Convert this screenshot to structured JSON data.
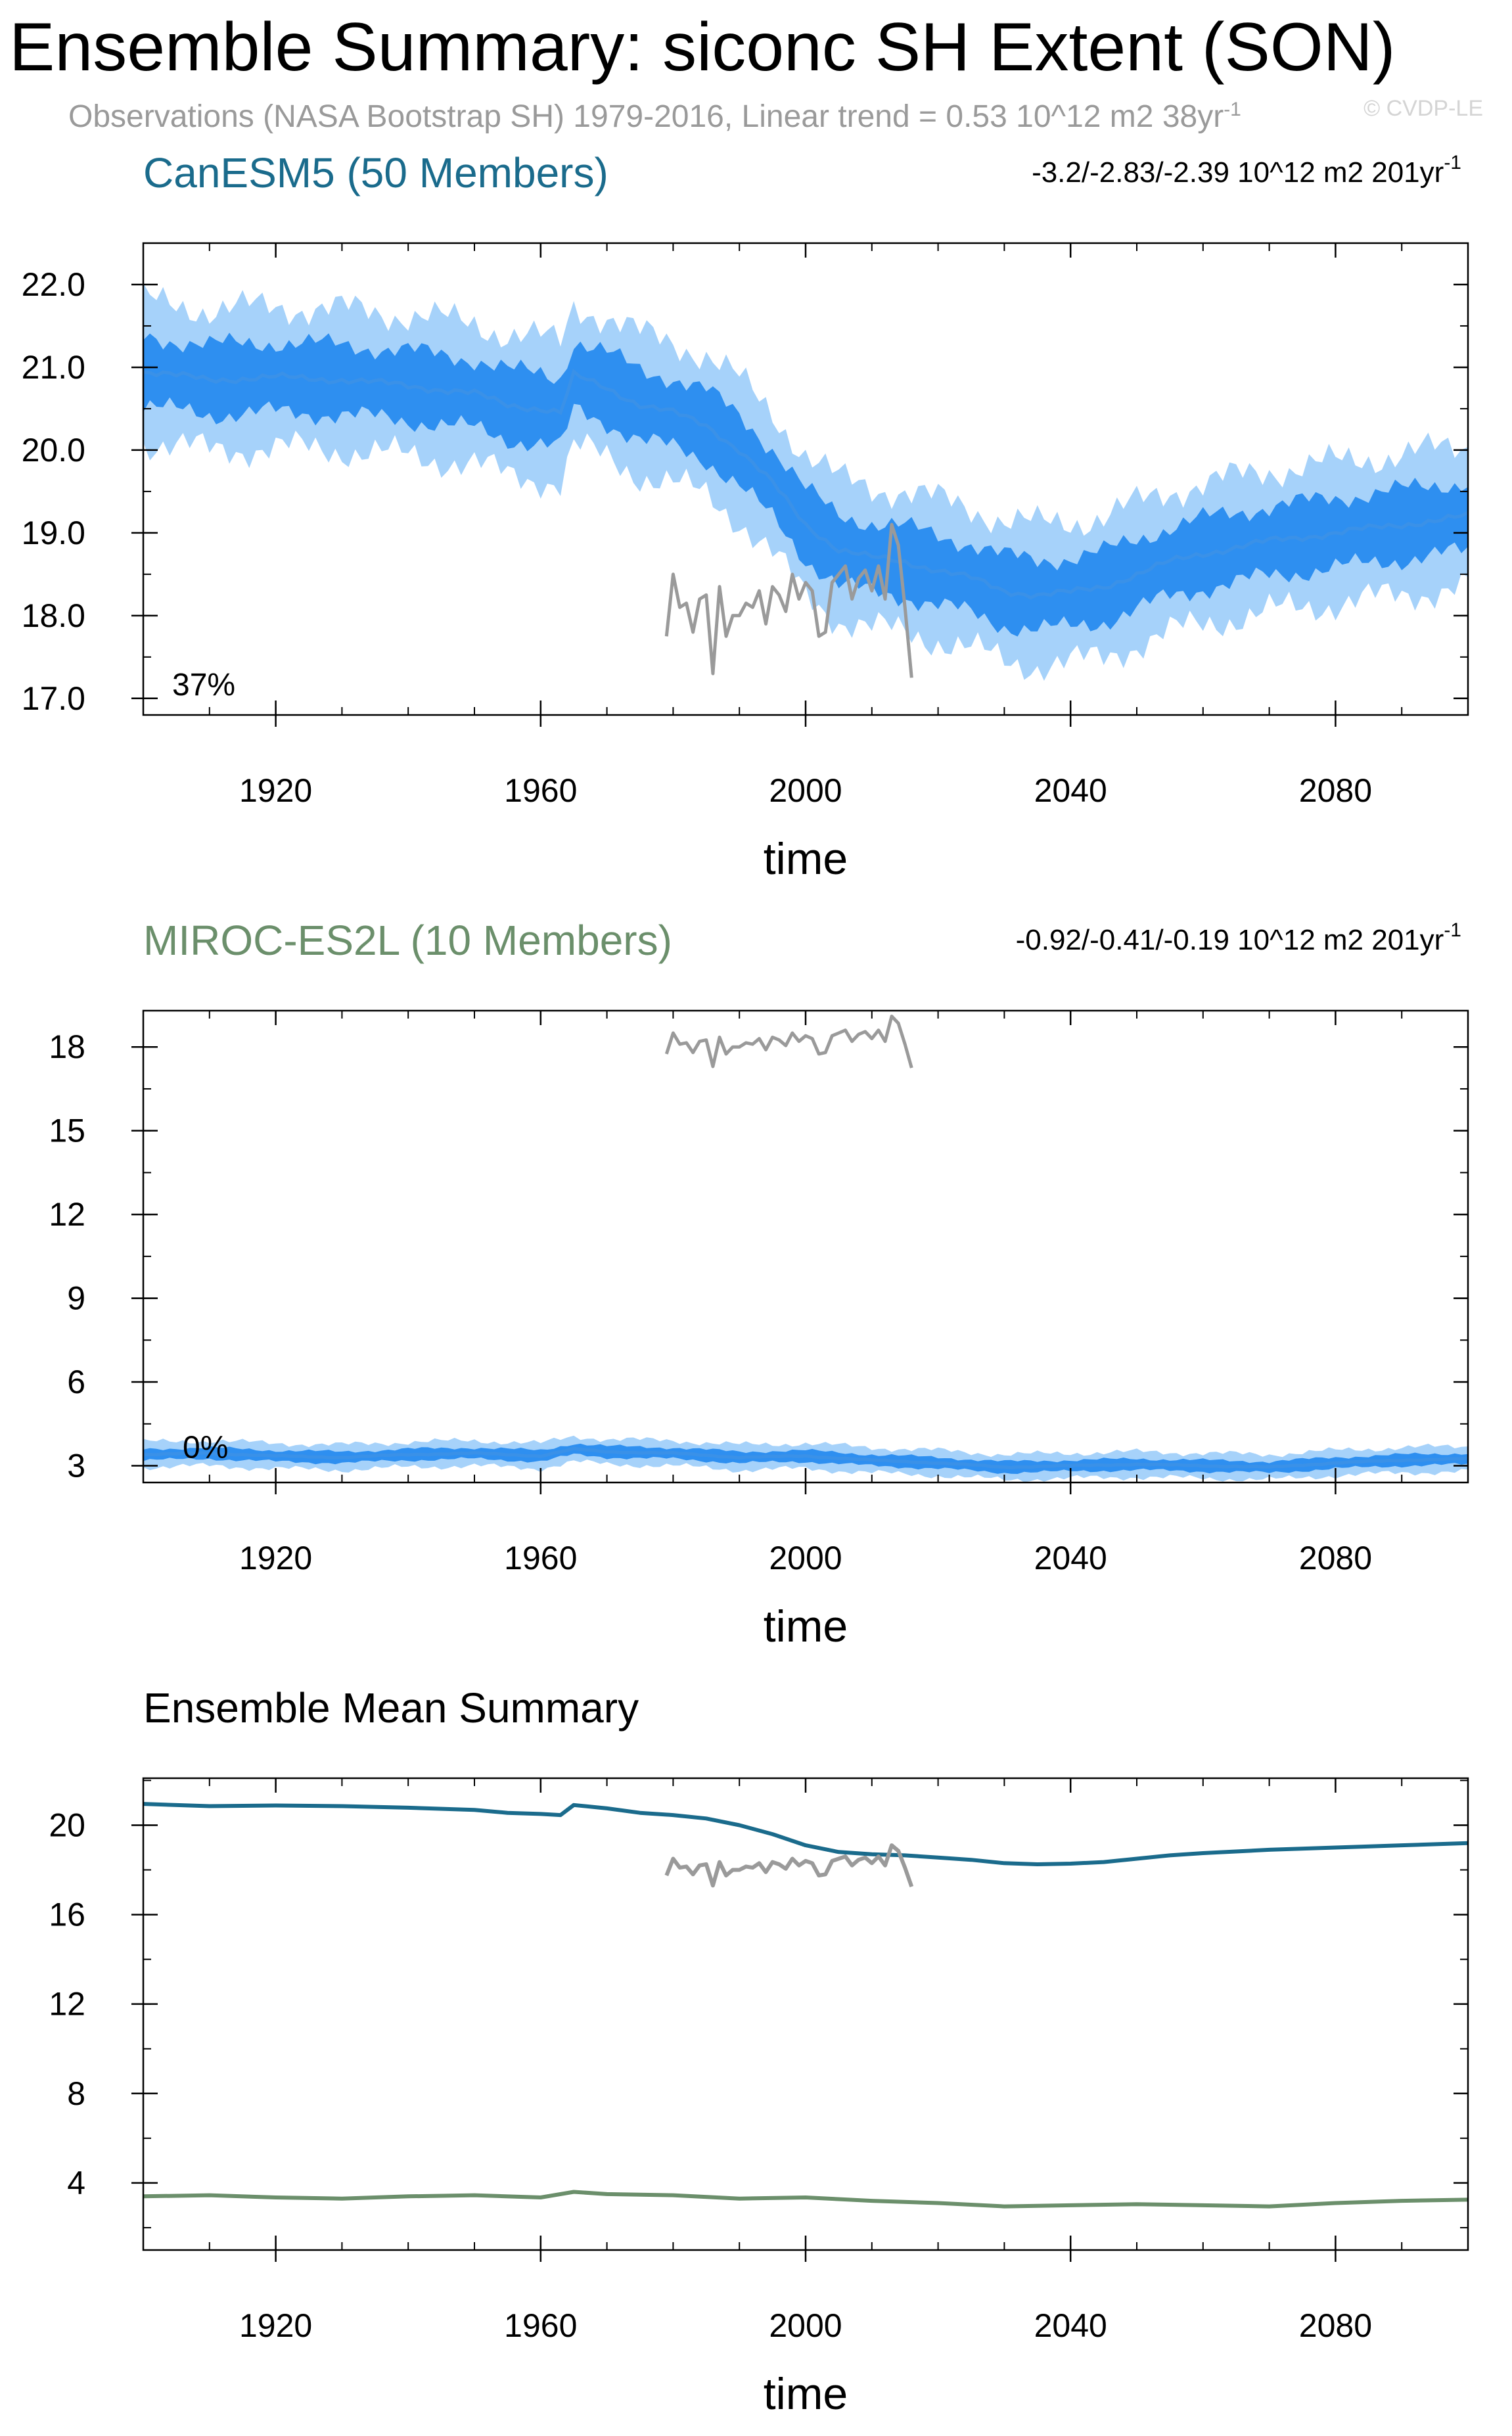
{
  "title": "Ensemble Summary: siconc SH Extent (SON)",
  "subtitle": "Observations (NASA Bootstrap SH) 1979-2016, Linear trend = 0.53 10^12 m2 38yr",
  "subtitle_sup": "-1",
  "watermark": "© CVDP-LE",
  "colors": {
    "canesm5": "#1a6b8c",
    "miroc": "#6b8f6b",
    "obs": "#9a9a9a",
    "ens_mean": "#3a91e8",
    "inner_band": "#2e8ff0",
    "outer_band": "#a6d2fa"
  },
  "chart_data": [
    {
      "type": "area",
      "title": "CanESM5 (50 Members)",
      "trend_text": "-3.2/-2.83/-2.39 10^12 m2 201yr",
      "trend_sup": "-1",
      "annotation": "37%",
      "xlabel": "time",
      "ylabel": "",
      "xlim": [
        1900,
        2100
      ],
      "ylim": [
        16.8,
        22.5
      ],
      "xticks": [
        1920,
        1960,
        2000,
        2040,
        2080
      ],
      "yticks": [
        17.0,
        18.0,
        19.0,
        20.0,
        21.0,
        22.0
      ],
      "ytick_labels": [
        "17.0",
        "18.0",
        "19.0",
        "20.0",
        "21.0",
        "22.0"
      ],
      "ensemble_mean": {
        "x": [
          1900,
          1910,
          1920,
          1930,
          1940,
          1950,
          1955,
          1960,
          1963,
          1965,
          1970,
          1975,
          1980,
          1985,
          1990,
          1995,
          2000,
          2005,
          2010,
          2015,
          2020,
          2025,
          2030,
          2035,
          2040,
          2045,
          2050,
          2055,
          2060,
          2070,
          2080,
          2090,
          2100
        ],
        "y": [
          20.95,
          20.85,
          20.88,
          20.85,
          20.78,
          20.68,
          20.55,
          20.5,
          20.45,
          20.9,
          20.75,
          20.55,
          20.45,
          20.3,
          20.0,
          19.6,
          19.1,
          18.8,
          18.7,
          18.65,
          18.55,
          18.45,
          18.3,
          18.25,
          18.28,
          18.35,
          18.5,
          18.65,
          18.75,
          18.9,
          19.0,
          19.1,
          19.2
        ]
      },
      "inner_halfwidth": 0.42,
      "outer_halfwidth": 0.85,
      "observations": {
        "x": [
          1979,
          1980,
          1981,
          1982,
          1983,
          1984,
          1985,
          1986,
          1987,
          1988,
          1989,
          1990,
          1991,
          1992,
          1993,
          1994,
          1995,
          1996,
          1997,
          1998,
          1999,
          2000,
          2001,
          2002,
          2003,
          2004,
          2005,
          2006,
          2007,
          2008,
          2009,
          2010,
          2011,
          2012,
          2013,
          2014,
          2015,
          2016
        ],
        "y": [
          17.75,
          18.5,
          18.1,
          18.15,
          17.8,
          18.2,
          18.25,
          17.3,
          18.35,
          17.75,
          18.0,
          18.0,
          18.15,
          18.1,
          18.3,
          17.9,
          18.35,
          18.25,
          18.05,
          18.5,
          18.2,
          18.4,
          18.3,
          17.75,
          17.8,
          18.4,
          18.5,
          18.6,
          18.2,
          18.45,
          18.55,
          18.3,
          18.6,
          18.2,
          19.1,
          18.85,
          18.1,
          17.25
        ]
      }
    },
    {
      "type": "area",
      "title": "MIROC-ES2L (10 Members)",
      "trend_text": "-0.92/-0.41/-0.19 10^12 m2 201yr",
      "trend_sup": "-1",
      "annotation": "0%",
      "xlabel": "time",
      "ylabel": "",
      "xlim": [
        1900,
        2100
      ],
      "ylim": [
        2.4,
        19.3
      ],
      "xticks": [
        1920,
        1960,
        2000,
        2040,
        2080
      ],
      "yticks": [
        3,
        6,
        9,
        12,
        15,
        18
      ],
      "ytick_labels": [
        "3",
        "6",
        "9",
        "12",
        "15",
        "18"
      ],
      "ensemble_mean": {
        "x": [
          1900,
          1910,
          1920,
          1930,
          1940,
          1950,
          1960,
          1965,
          1970,
          1980,
          1990,
          2000,
          2010,
          2020,
          2030,
          2040,
          2050,
          2060,
          2070,
          2080,
          2090,
          2100
        ],
        "y": [
          3.4,
          3.45,
          3.35,
          3.3,
          3.4,
          3.45,
          3.35,
          3.6,
          3.5,
          3.45,
          3.3,
          3.35,
          3.2,
          3.1,
          2.95,
          3.0,
          3.05,
          3.0,
          2.95,
          3.1,
          3.2,
          3.25
        ]
      },
      "inner_halfwidth": 0.2,
      "outer_halfwidth": 0.45,
      "observations": {
        "x": [
          1979,
          1980,
          1981,
          1982,
          1983,
          1984,
          1985,
          1986,
          1987,
          1988,
          1989,
          1990,
          1991,
          1992,
          1993,
          1994,
          1995,
          1996,
          1997,
          1998,
          1999,
          2000,
          2001,
          2002,
          2003,
          2004,
          2005,
          2006,
          2007,
          2008,
          2009,
          2010,
          2011,
          2012,
          2013,
          2014,
          2015,
          2016
        ],
        "y": [
          17.75,
          18.5,
          18.1,
          18.15,
          17.8,
          18.2,
          18.25,
          17.3,
          18.35,
          17.75,
          18.0,
          18.0,
          18.15,
          18.1,
          18.3,
          17.9,
          18.35,
          18.25,
          18.05,
          18.5,
          18.2,
          18.4,
          18.3,
          17.75,
          17.8,
          18.4,
          18.5,
          18.6,
          18.2,
          18.45,
          18.55,
          18.3,
          18.6,
          18.2,
          19.1,
          18.85,
          18.1,
          17.25
        ]
      }
    },
    {
      "type": "line",
      "title": "Ensemble Mean Summary",
      "xlabel": "time",
      "ylabel": "",
      "xlim": [
        1900,
        2100
      ],
      "ylim": [
        1.0,
        22.1
      ],
      "xticks": [
        1920,
        1960,
        2000,
        2040,
        2080
      ],
      "yticks": [
        4,
        8,
        12,
        16,
        20
      ],
      "ytick_labels": [
        "4",
        "8",
        "12",
        "16",
        "20"
      ],
      "series": [
        {
          "color": "#1a6b8c",
          "x": [
            1900,
            1910,
            1920,
            1930,
            1940,
            1950,
            1955,
            1960,
            1963,
            1965,
            1970,
            1975,
            1980,
            1985,
            1990,
            1995,
            2000,
            2005,
            2010,
            2015,
            2020,
            2025,
            2030,
            2035,
            2040,
            2045,
            2050,
            2055,
            2060,
            2070,
            2080,
            2090,
            2100
          ],
          "y": [
            20.95,
            20.85,
            20.88,
            20.85,
            20.78,
            20.68,
            20.55,
            20.5,
            20.45,
            20.9,
            20.75,
            20.55,
            20.45,
            20.3,
            20.0,
            19.6,
            19.1,
            18.8,
            18.7,
            18.65,
            18.55,
            18.45,
            18.3,
            18.25,
            18.28,
            18.35,
            18.5,
            18.65,
            18.75,
            18.9,
            19.0,
            19.1,
            19.2
          ]
        },
        {
          "color": "#6b8f6b",
          "x": [
            1900,
            1910,
            1920,
            1930,
            1940,
            1950,
            1960,
            1965,
            1970,
            1980,
            1990,
            2000,
            2010,
            2020,
            2030,
            2040,
            2050,
            2060,
            2070,
            2080,
            2090,
            2100
          ],
          "y": [
            3.4,
            3.45,
            3.35,
            3.3,
            3.4,
            3.45,
            3.35,
            3.6,
            3.5,
            3.45,
            3.3,
            3.35,
            3.2,
            3.1,
            2.95,
            3.0,
            3.05,
            3.0,
            2.95,
            3.1,
            3.2,
            3.25
          ]
        },
        {
          "color": "#9a9a9a",
          "x": [
            1979,
            1980,
            1981,
            1982,
            1983,
            1984,
            1985,
            1986,
            1987,
            1988,
            1989,
            1990,
            1991,
            1992,
            1993,
            1994,
            1995,
            1996,
            1997,
            1998,
            1999,
            2000,
            2001,
            2002,
            2003,
            2004,
            2005,
            2006,
            2007,
            2008,
            2009,
            2010,
            2011,
            2012,
            2013,
            2014,
            2015,
            2016
          ],
          "y": [
            17.75,
            18.5,
            18.1,
            18.15,
            17.8,
            18.2,
            18.25,
            17.3,
            18.35,
            17.75,
            18.0,
            18.0,
            18.15,
            18.1,
            18.3,
            17.9,
            18.35,
            18.25,
            18.05,
            18.5,
            18.2,
            18.4,
            18.3,
            17.75,
            17.8,
            18.4,
            18.5,
            18.6,
            18.2,
            18.45,
            18.55,
            18.3,
            18.6,
            18.2,
            19.1,
            18.85,
            18.1,
            17.25
          ]
        }
      ]
    }
  ]
}
